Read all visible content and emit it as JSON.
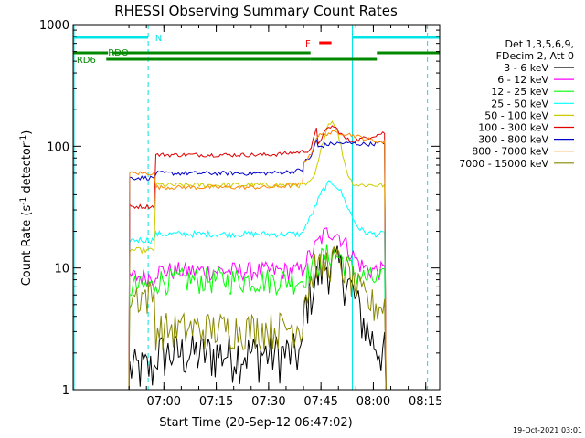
{
  "chart_data": {
    "type": "line",
    "title": "RHESSI Observing Summary Count Rates",
    "xlabel": "Start Time (20-Sep-12 06:47:02)",
    "ylabel": "Count Rate (s⁻¹ detector⁻¹)",
    "ylabel_parts": {
      "main": "Count Rate (s",
      "sup1": "-1",
      "mid": " detector",
      "sup2": "-1",
      "end": ")"
    },
    "yscale": "log",
    "ylim": [
      1,
      1000
    ],
    "xlim_minutes": [
      -13,
      92
    ],
    "x_ticks": [
      {
        "min": 13,
        "label": "07:00"
      },
      {
        "min": 28,
        "label": "07:15"
      },
      {
        "min": 43,
        "label": "07:30"
      },
      {
        "min": 58,
        "label": "07:45"
      },
      {
        "min": 73,
        "label": "08:00"
      },
      {
        "min": 88,
        "label": "08:15"
      }
    ],
    "y_ticks": [
      {
        "value": 1,
        "label": "1"
      },
      {
        "value": 10,
        "label": "10"
      },
      {
        "value": 100,
        "label": "100"
      },
      {
        "value": 1000,
        "label": "1000"
      }
    ],
    "legend_header": [
      "Det 1,3,5,6,9,",
      "FDecim 2, Att 0"
    ],
    "legend_placement": "right",
    "series": [
      {
        "name": "3 - 6 keV",
        "color": "#000000"
      },
      {
        "name": "6 - 12 keV",
        "color": "#ff00ff"
      },
      {
        "name": "12 - 25 keV",
        "color": "#00ff00"
      },
      {
        "name": "25 - 50 keV",
        "color": "#00ffff"
      },
      {
        "name": "50 - 100 keV",
        "color": "#cccc00"
      },
      {
        "name": "100 - 300 keV",
        "color": "#e00000"
      },
      {
        "name": "300 - 800 keV",
        "color": "#0000cc"
      },
      {
        "name": "800 - 7000 keV",
        "color": "#ff8800"
      },
      {
        "name": "7000 - 15000 keV",
        "color": "#888800"
      }
    ],
    "flags": [
      {
        "label": "N",
        "color": "#00e5e5"
      },
      {
        "label": "RDO",
        "color": "#008800"
      },
      {
        "label": "RD6",
        "color": "#008800"
      },
      {
        "label": "F",
        "color": "#ff0000"
      }
    ],
    "footer_date": "19-Oct-2021 03:01"
  }
}
